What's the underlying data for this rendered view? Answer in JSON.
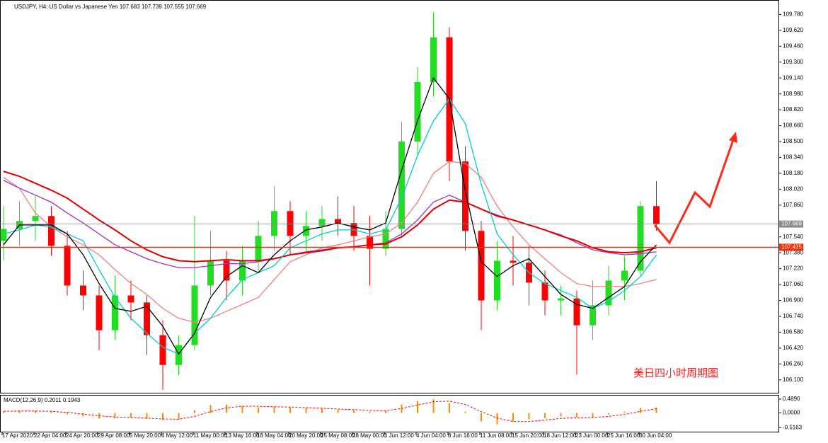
{
  "chart_data": [
    {
      "type": "candlestick",
      "title": "USDJPY, H4:  US Dollar vs Japanese Yen  107.683 107.739 107.555 107.669",
      "annotation": "美日四小时周期图",
      "categories": [
        "17 Apr 2020",
        null,
        "22 Apr 04:00",
        null,
        "24 Apr 20:00",
        null,
        "29 Apr 08:00",
        null,
        "5 May 20:00",
        null,
        "6 May 12:00",
        null,
        "11 May 00:00",
        null,
        "13 May 16:00",
        null,
        "18 May 04:00",
        null,
        "20 May 20:00",
        null,
        "25 May 08:00",
        null,
        "28 May 00:00",
        null,
        "1 Jun 12:00",
        null,
        "4 Jun 04:00",
        null,
        "8 Jun 16:00",
        null,
        "11 Jun 08:00",
        null,
        "15 Jun 20:00",
        null,
        "18 Jun 12:00",
        null,
        "23 Jun 00:00",
        null,
        "25 Jun 16:00",
        null,
        "30 Jun 04:00",
        null
      ],
      "open": [
        107.5,
        107.62,
        107.7,
        107.75,
        107.45,
        107.05,
        106.95,
        106.6,
        106.95,
        106.88,
        106.55,
        106.25,
        106.45,
        107.05,
        107.3,
        107.1,
        107.3,
        107.55,
        107.8,
        107.55,
        107.65,
        107.72,
        107.68,
        107.55,
        107.42,
        107.62,
        108.5,
        109.1,
        109.55,
        108.3,
        107.6,
        106.9,
        107.3,
        107.28,
        107.08,
        106.9,
        106.92,
        106.65,
        106.85,
        107.1,
        107.2,
        107.85
      ],
      "high": [
        107.85,
        107.9,
        107.95,
        107.85,
        107.6,
        107.2,
        107.05,
        107.15,
        107.1,
        106.95,
        106.7,
        106.55,
        107.75,
        107.6,
        107.4,
        107.45,
        107.7,
        108.05,
        107.9,
        107.8,
        107.85,
        107.95,
        107.85,
        107.75,
        107.8,
        108.7,
        109.25,
        109.8,
        109.65,
        108.45,
        107.7,
        107.5,
        107.55,
        107.45,
        107.2,
        107.05,
        107.0,
        107.1,
        107.25,
        107.35,
        107.9,
        108.1
      ],
      "low": [
        107.3,
        107.45,
        107.5,
        107.35,
        106.95,
        106.8,
        106.4,
        106.5,
        106.7,
        106.35,
        106.0,
        106.15,
        106.4,
        106.95,
        106.9,
        106.95,
        107.2,
        107.4,
        107.35,
        107.4,
        107.5,
        107.55,
        107.4,
        107.05,
        107.35,
        107.55,
        108.35,
        108.95,
        108.1,
        107.4,
        106.6,
        106.8,
        107.05,
        106.85,
        106.75,
        106.75,
        106.15,
        106.5,
        106.75,
        106.9,
        107.15,
        107.6
      ],
      "close": [
        107.62,
        107.7,
        107.75,
        107.45,
        107.05,
        106.95,
        106.6,
        106.95,
        106.88,
        106.55,
        106.25,
        106.45,
        107.05,
        107.3,
        107.1,
        107.3,
        107.55,
        107.8,
        107.55,
        107.65,
        107.72,
        107.68,
        107.55,
        107.42,
        107.62,
        108.5,
        109.1,
        109.55,
        108.3,
        107.6,
        106.9,
        107.3,
        107.28,
        107.08,
        106.9,
        106.92,
        106.65,
        106.85,
        107.1,
        107.2,
        107.85,
        107.67
      ],
      "up_color": "#22dd22",
      "down_color": "#ff0000",
      "series": [
        {
          "color": "#f08080",
          "values": [
            108.14,
            108.03,
            107.78,
            107.64,
            107.54,
            107.46,
            107.36,
            107.21,
            107.07,
            106.96,
            106.82,
            106.72,
            106.68,
            106.72,
            106.79,
            106.86,
            106.93,
            107.11,
            107.29,
            107.36,
            107.43,
            107.46,
            107.5,
            107.54,
            107.57,
            107.68,
            107.89,
            108.18,
            108.3,
            108.28,
            108.14,
            107.85,
            107.64,
            107.46,
            107.32,
            107.18,
            107.07,
            107.04,
            107.04,
            107.04,
            107.07,
            107.11
          ]
        },
        {
          "color": "#9932cc",
          "values": [
            108.11,
            108.03,
            107.96,
            107.89,
            107.78,
            107.68,
            107.57,
            107.46,
            107.39,
            107.32,
            107.27,
            107.23,
            107.23,
            107.25,
            107.27,
            107.27,
            107.29,
            107.32,
            107.36,
            107.39,
            107.41,
            107.43,
            107.44,
            107.46,
            107.48,
            107.57,
            107.71,
            107.89,
            107.96,
            107.89,
            107.82,
            107.76,
            107.71,
            107.66,
            107.61,
            107.56,
            107.48,
            107.41,
            107.38,
            107.36,
            107.37,
            107.39
          ]
        },
        {
          "color": "#e00000",
          "values": [
            108.2,
            108.15,
            108.08,
            108.01,
            107.93,
            107.82,
            107.71,
            107.61,
            107.5,
            107.41,
            107.34,
            107.3,
            107.29,
            107.3,
            107.31,
            107.3,
            107.3,
            107.32,
            107.36,
            107.38,
            107.4,
            107.43,
            107.44,
            107.46,
            107.47,
            107.54,
            107.66,
            107.82,
            107.91,
            107.89,
            107.82,
            107.75,
            107.71,
            107.66,
            107.61,
            107.55,
            107.5,
            107.43,
            107.39,
            107.38,
            107.39,
            107.43
          ]
        },
        {
          "color": "#00ced1",
          "values": [
            107.57,
            107.61,
            107.66,
            107.64,
            107.57,
            107.5,
            107.21,
            106.93,
            106.72,
            106.57,
            106.43,
            106.36,
            106.57,
            106.72,
            106.93,
            107.11,
            107.18,
            107.25,
            107.43,
            107.5,
            107.57,
            107.61,
            107.61,
            107.57,
            107.61,
            107.93,
            108.36,
            108.71,
            108.93,
            108.68,
            108.07,
            107.57,
            107.36,
            107.18,
            107.07,
            107.0,
            106.93,
            106.82,
            106.89,
            107.0,
            107.14,
            107.36
          ]
        },
        {
          "color": "#000000",
          "values": [
            107.46,
            107.66,
            107.66,
            107.66,
            107.57,
            107.36,
            107.07,
            106.82,
            106.79,
            106.84,
            106.64,
            106.36,
            106.57,
            106.93,
            107.14,
            107.25,
            107.18,
            107.36,
            107.5,
            107.61,
            107.64,
            107.68,
            107.64,
            107.61,
            107.68,
            108.21,
            108.71,
            109.14,
            108.93,
            108.0,
            107.29,
            107.14,
            107.25,
            107.32,
            107.14,
            106.96,
            106.86,
            106.82,
            106.93,
            107.04,
            107.29,
            107.46
          ]
        }
      ],
      "price_lines": [
        {
          "value": 107.669,
          "color": "#8c8c8c"
        },
        {
          "value": 107.435,
          "color": "#ff2a00"
        }
      ],
      "ylim": [
        105.97,
        109.89
      ],
      "yticks": [
        {
          "value": 109.78,
          "label": "109.780"
        },
        {
          "value": 109.62,
          "label": "109.620"
        },
        {
          "value": 109.46,
          "label": "109.460"
        },
        {
          "value": 109.3,
          "label": "109.300"
        },
        {
          "value": 109.14,
          "label": "109.140"
        },
        {
          "value": 108.98,
          "label": "108.980"
        },
        {
          "value": 108.82,
          "label": "108.820"
        },
        {
          "value": 108.66,
          "label": "108.660"
        },
        {
          "value": 108.5,
          "label": "108.500"
        },
        {
          "value": 108.34,
          "label": "108.340"
        },
        {
          "value": 108.18,
          "label": "108.180"
        },
        {
          "value": 108.02,
          "label": "108.020"
        },
        {
          "value": 107.86,
          "label": "107.860"
        },
        {
          "value": 107.54,
          "label": "107.540"
        },
        {
          "value": 107.38,
          "label": "107.380"
        },
        {
          "value": 107.22,
          "label": "107.220"
        },
        {
          "value": 107.06,
          "label": "107.060"
        },
        {
          "value": 106.9,
          "label": "106.900"
        },
        {
          "value": 106.74,
          "label": "106.740"
        },
        {
          "value": 106.58,
          "label": "106.580"
        },
        {
          "value": 106.42,
          "label": "106.420"
        },
        {
          "value": 106.26,
          "label": "106.260"
        },
        {
          "value": 106.1,
          "label": "106.100"
        }
      ]
    },
    {
      "type": "macd",
      "title": "MACD(12,26,9) 0.2011 0.1943",
      "series": [
        {
          "type": "bar",
          "color": "#ff8c00",
          "values": [
            0.05,
            0.08,
            0.08,
            0.05,
            -0.05,
            -0.12,
            -0.2,
            -0.18,
            -0.15,
            -0.2,
            -0.25,
            -0.22,
            0.1,
            0.28,
            0.3,
            0.25,
            0.2,
            0.22,
            0.2,
            0.18,
            0.15,
            0.12,
            0.1,
            0.05,
            0.08,
            0.3,
            0.42,
            0.48,
            0.35,
            0.05,
            -0.3,
            -0.4,
            -0.3,
            -0.22,
            -0.18,
            -0.12,
            -0.15,
            -0.15,
            -0.05,
            0.05,
            0.18,
            0.2
          ]
        },
        {
          "type": "line",
          "color": "#ff0000",
          "values": [
            0.06,
            0.07,
            0.07,
            0.06,
            0.02,
            -0.04,
            -0.1,
            -0.14,
            -0.16,
            -0.18,
            -0.21,
            -0.22,
            -0.12,
            0.05,
            0.18,
            0.24,
            0.24,
            0.22,
            0.21,
            0.19,
            0.17,
            0.14,
            0.12,
            0.09,
            0.08,
            0.16,
            0.28,
            0.4,
            0.42,
            0.3,
            0.05,
            -0.18,
            -0.3,
            -0.3,
            -0.25,
            -0.19,
            -0.17,
            -0.16,
            -0.12,
            -0.05,
            0.06,
            0.15
          ]
        }
      ],
      "ylim": [
        -0.66,
        0.64
      ],
      "yticks": [
        {
          "value": 0.489,
          "label": "0.4890"
        },
        {
          "value": 0,
          "label": "0.0000"
        },
        {
          "value": -0.5163,
          "label": "-0.5163"
        }
      ]
    }
  ]
}
